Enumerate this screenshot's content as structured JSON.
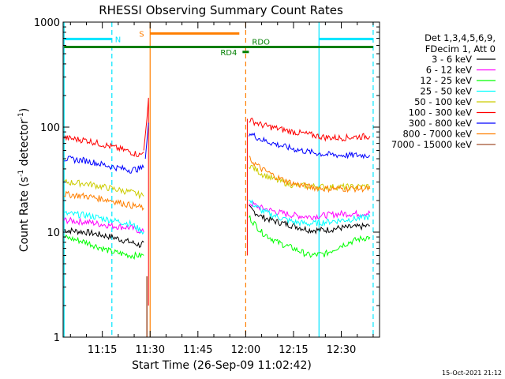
{
  "chart_data": {
    "type": "line",
    "title": "RHESSI Observing Summary Count Rates",
    "xlabel": "Start Time (26-Sep-09 11:02:42)",
    "ylabel": "Count Rate (s",
    "ylabel_sup": "-1",
    "ylabel_tail": " detector",
    "ylabel_sup2": "-1",
    "ylabel_end": ")",
    "y_scale": "log",
    "ylim": [
      1,
      1000
    ],
    "xlim": [
      "11:02:42",
      "12:42:00"
    ],
    "y_ticks": [
      "1",
      "10",
      "100",
      "1000"
    ],
    "x_ticks": [
      "11:15",
      "11:30",
      "11:45",
      "12:00",
      "12:15",
      "12:30"
    ],
    "legend_title_1": "Det 1,3,4,5,6,9,",
    "legend_title_2": "FDecim 1, Att 0",
    "legend_placement": "right",
    "footer_date": "15-Oct-2021 21:12",
    "series": [
      {
        "name": "3 - 6 keV",
        "color": "#000000",
        "points": [
          [
            "11:03",
            10.5
          ],
          [
            "11:10",
            10
          ],
          [
            "11:18",
            9
          ],
          [
            "11:24",
            8
          ],
          [
            "11:27",
            7.5
          ],
          [
            "11:28",
            8
          ],
          [
            "12:01",
            17
          ],
          [
            "12:05",
            14
          ],
          [
            "12:10",
            12.5
          ],
          [
            "12:15",
            11.5
          ],
          [
            "12:20",
            10.5
          ],
          [
            "12:25",
            10.5
          ],
          [
            "12:30",
            11
          ],
          [
            "12:35",
            11.2
          ],
          [
            "12:39",
            11.5
          ]
        ]
      },
      {
        "name": "6 - 12 keV",
        "color": "#ff00ff",
        "points": [
          [
            "11:03",
            13
          ],
          [
            "11:10",
            12.5
          ],
          [
            "11:18",
            11.5
          ],
          [
            "11:24",
            11
          ],
          [
            "11:28",
            10
          ],
          [
            "12:01",
            19
          ],
          [
            "12:05",
            17
          ],
          [
            "12:10",
            15.5
          ],
          [
            "12:15",
            14.5
          ],
          [
            "12:20",
            14
          ],
          [
            "12:25",
            14.5
          ],
          [
            "12:30",
            15
          ],
          [
            "12:35",
            15
          ],
          [
            "12:39",
            15.2
          ]
        ]
      },
      {
        "name": "12 - 25 keV",
        "color": "#00ff00",
        "points": [
          [
            "11:03",
            9
          ],
          [
            "11:10",
            8
          ],
          [
            "11:15",
            7
          ],
          [
            "11:18",
            6.5
          ],
          [
            "11:24",
            6
          ],
          [
            "11:28",
            6
          ],
          [
            "12:01",
            14
          ],
          [
            "12:05",
            10
          ],
          [
            "12:10",
            8
          ],
          [
            "12:15",
            7
          ],
          [
            "12:20",
            6
          ],
          [
            "12:25",
            6.2
          ],
          [
            "12:30",
            7.5
          ],
          [
            "12:35",
            8.5
          ],
          [
            "12:39",
            9
          ]
        ]
      },
      {
        "name": "25 - 50 keV",
        "color": "#00ffff",
        "points": [
          [
            "11:03",
            15
          ],
          [
            "11:10",
            14.5
          ],
          [
            "11:18",
            13
          ],
          [
            "11:24",
            12
          ],
          [
            "11:28",
            10
          ],
          [
            "12:01",
            20
          ],
          [
            "12:05",
            16
          ],
          [
            "12:10",
            14
          ],
          [
            "12:15",
            12.5
          ],
          [
            "12:20",
            12
          ],
          [
            "12:25",
            12.5
          ],
          [
            "12:30",
            13
          ],
          [
            "12:35",
            13.5
          ],
          [
            "12:39",
            14
          ]
        ]
      },
      {
        "name": "50 - 100 keV",
        "color": "#cccc00",
        "points": [
          [
            "11:03",
            30
          ],
          [
            "11:10",
            29
          ],
          [
            "11:18",
            26
          ],
          [
            "11:24",
            24
          ],
          [
            "11:28",
            22
          ],
          [
            "12:01",
            44
          ],
          [
            "12:05",
            36
          ],
          [
            "12:10",
            31
          ],
          [
            "12:15",
            28
          ],
          [
            "12:20",
            27.5
          ],
          [
            "12:25",
            27
          ],
          [
            "12:30",
            27
          ],
          [
            "12:35",
            27
          ],
          [
            "12:39",
            27.5
          ]
        ]
      },
      {
        "name": "100 - 300 keV",
        "color": "#ff0000",
        "points": [
          [
            "11:03",
            79
          ],
          [
            "11:10",
            75
          ],
          [
            "11:18",
            65
          ],
          [
            "11:24",
            58
          ],
          [
            "11:27",
            54
          ],
          [
            "11:28",
            58
          ],
          [
            "12:01",
            118
          ],
          [
            "12:05",
            105
          ],
          [
            "12:10",
            97
          ],
          [
            "12:15",
            90
          ],
          [
            "12:20",
            85
          ],
          [
            "12:25",
            80
          ],
          [
            "12:30",
            79
          ],
          [
            "12:35",
            81
          ],
          [
            "12:39",
            82
          ]
        ]
      },
      {
        "name": "300 - 800 keV",
        "color": "#0000ff",
        "points": [
          [
            "11:03",
            50
          ],
          [
            "11:10",
            48
          ],
          [
            "11:18",
            42
          ],
          [
            "11:24",
            39
          ],
          [
            "11:28",
            41
          ],
          [
            "12:01",
            88
          ],
          [
            "12:05",
            76
          ],
          [
            "12:10",
            68
          ],
          [
            "12:15",
            62
          ],
          [
            "12:20",
            58
          ],
          [
            "12:25",
            55
          ],
          [
            "12:30",
            54
          ],
          [
            "12:35",
            54
          ],
          [
            "12:39",
            54
          ]
        ]
      },
      {
        "name": "800 - 7000 keV",
        "color": "#ff7f00",
        "points": [
          [
            "11:03",
            23
          ],
          [
            "11:10",
            22
          ],
          [
            "11:18",
            20
          ],
          [
            "11:24",
            18
          ],
          [
            "11:28",
            17
          ],
          [
            "12:01",
            50
          ],
          [
            "12:05",
            40
          ],
          [
            "12:10",
            33
          ],
          [
            "12:15",
            29
          ],
          [
            "12:20",
            27
          ],
          [
            "12:25",
            26
          ],
          [
            "12:30",
            26
          ],
          [
            "12:35",
            26
          ],
          [
            "12:39",
            26
          ]
        ]
      },
      {
        "name": "7000 - 15000 keV",
        "color": "#a0522d",
        "points": []
      }
    ],
    "annotations": [
      {
        "label": "N",
        "color": "#00e5ff"
      },
      {
        "label": "S",
        "color": "#ff7f00"
      },
      {
        "label": "RDO",
        "color": "#007f00"
      },
      {
        "label": "RD4",
        "color": "#007f00"
      }
    ]
  }
}
